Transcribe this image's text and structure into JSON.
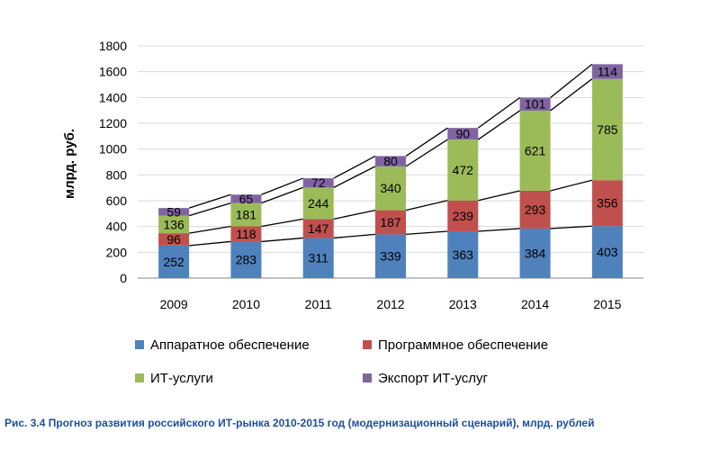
{
  "caption": "Рис. 3.4 Прогноз развития российского ИТ-рынка 2010-2015 год (модернизационный сценарий), млрд. рублей",
  "chart_data": {
    "type": "bar",
    "stacked": true,
    "categories": [
      "2009",
      "2010",
      "2011",
      "2012",
      "2013",
      "2014",
      "2015"
    ],
    "ylabel": "млрд. руб.",
    "ylim": [
      0,
      1800
    ],
    "yticks": [
      0,
      200,
      400,
      600,
      800,
      1000,
      1200,
      1400,
      1600,
      1800
    ],
    "grid": true,
    "legend_position": "bottom",
    "series": [
      {
        "name": "Аппаратное обеспечение",
        "color": "#4f81bd",
        "values": [
          252,
          283,
          311,
          339,
          363,
          384,
          403
        ]
      },
      {
        "name": "Программное обеспечение",
        "color": "#c0504d",
        "values": [
          96,
          118,
          147,
          187,
          239,
          293,
          356
        ]
      },
      {
        "name": "ИТ-услуги",
        "color": "#9bbb59",
        "values": [
          136,
          181,
          244,
          340,
          472,
          621,
          785
        ]
      },
      {
        "name": "Экспорт ИТ-услуг",
        "color": "#8064a2",
        "values": [
          59,
          65,
          72,
          80,
          90,
          101,
          114
        ]
      }
    ]
  }
}
